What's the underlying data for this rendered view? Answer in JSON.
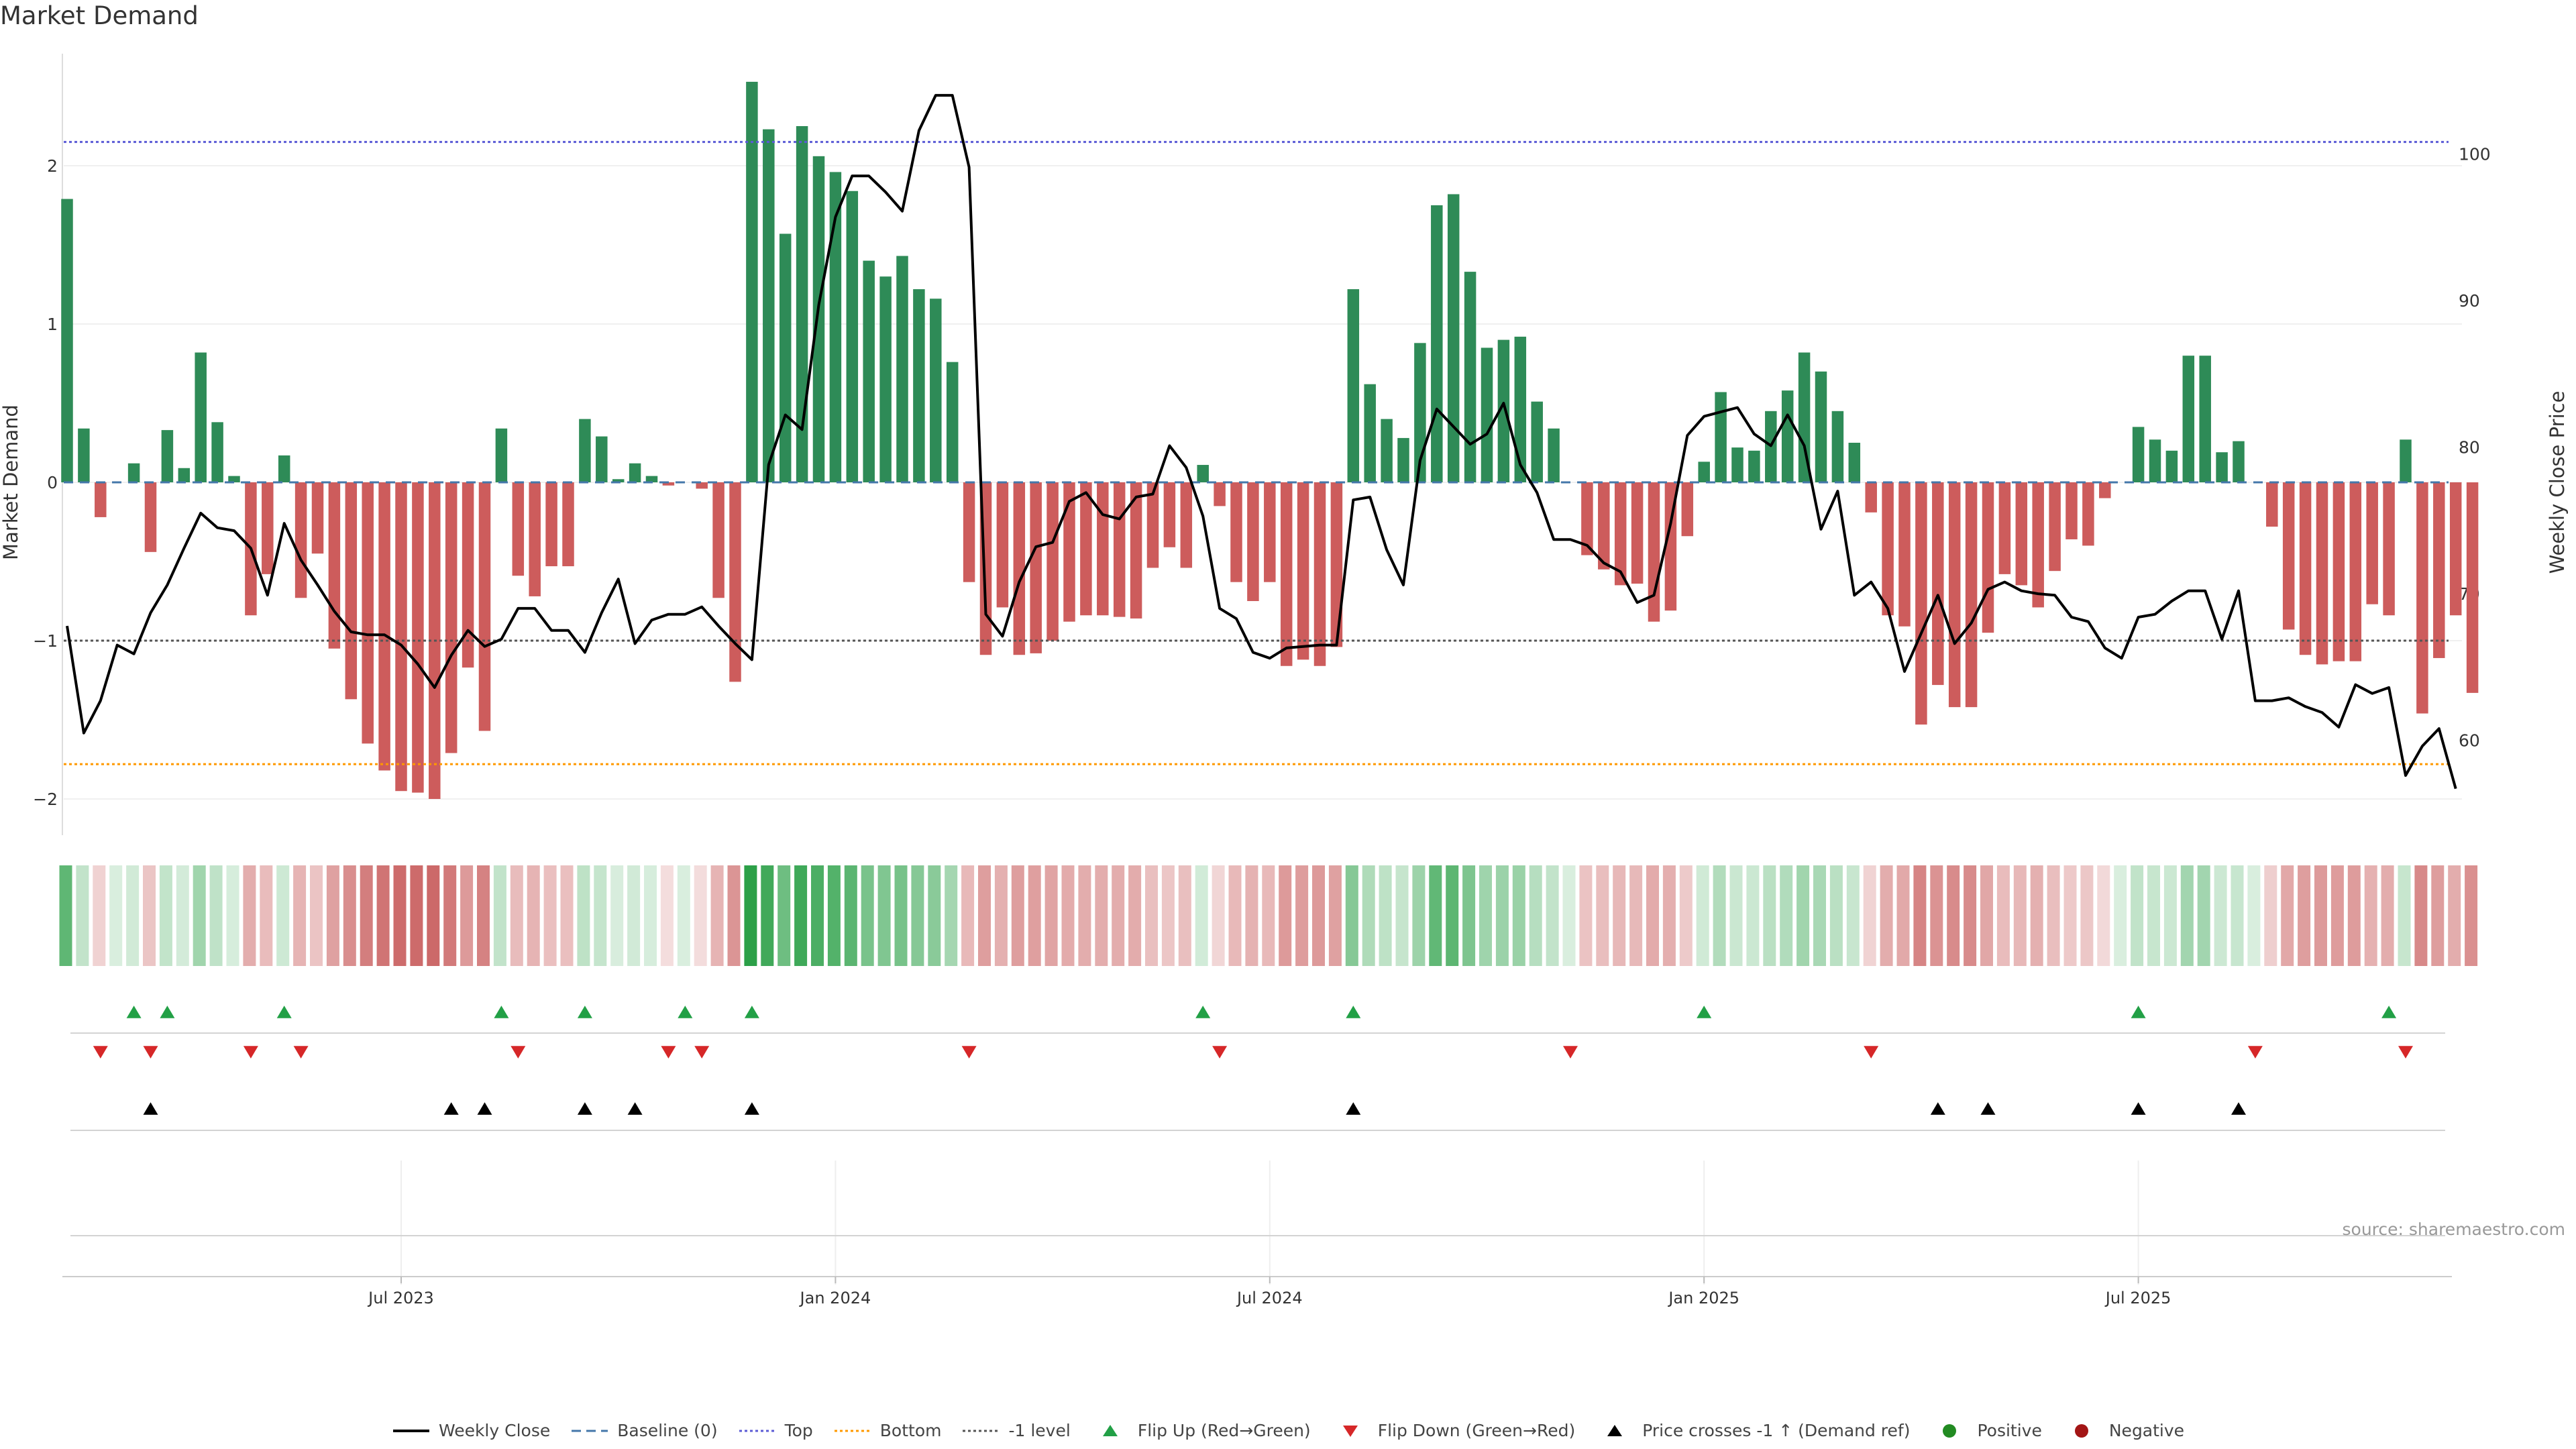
{
  "title": "Market Demand",
  "source": "source: sharemaestro.com",
  "colors": {
    "positive": "#2e8b57",
    "negative": "#cd5c5c",
    "close_line": "#000000",
    "top_line": "#5b5bd6",
    "bottom_line": "#ff9900",
    "minus1_line": "#555555",
    "baseline": "#4477aa",
    "flip_up": "#22a046",
    "flip_down": "#d62728",
    "cross": "#000000",
    "legend_positive": "#228b22",
    "legend_negative": "#a31515"
  },
  "legend": [
    {
      "label": "Weekly Close",
      "icon": "solid-line"
    },
    {
      "label": "Baseline (0)",
      "icon": "dashed-line"
    },
    {
      "label": "Top",
      "icon": "dotted-line-blue"
    },
    {
      "label": "Bottom",
      "icon": "dotted-line-orange"
    },
    {
      "label": "-1 level",
      "icon": "dotted-line-gray"
    },
    {
      "label": "Flip Up (Red→Green)",
      "icon": "triangle-up-green"
    },
    {
      "label": "Flip Down (Green→Red)",
      "icon": "triangle-down-red"
    },
    {
      "label": "Price crosses -1 ↑ (Demand ref)",
      "icon": "triangle-up-black"
    },
    {
      "label": "Positive",
      "icon": "dot-green"
    },
    {
      "label": "Negative",
      "icon": "dot-red"
    }
  ],
  "chart_data": {
    "type": "bar",
    "title": "Market Demand",
    "ylabel": "Market Demand",
    "y2label": "Weekly Close Price",
    "ylim": [
      -2.25,
      2.75
    ],
    "y_ticks": [
      -2,
      -1,
      0,
      1,
      2
    ],
    "y_tick_labels": [
      "−2",
      "−1",
      "0",
      "1",
      "2"
    ],
    "y2lim": [
      53.3,
      107.3
    ],
    "y2_ticks": [
      60,
      70,
      80,
      90,
      100
    ],
    "x_ticks": [
      20,
      46,
      72,
      98,
      124
    ],
    "x_tick_labels": [
      "Jul 2023",
      "Jan 2024",
      "Jul 2024",
      "Jan 2025",
      "Jul 2025"
    ],
    "reference_lines": {
      "top": 2.15,
      "bottom": -1.78,
      "minus1": -1,
      "baseline": 0
    },
    "grid": true,
    "series": [
      {
        "name": "Market Demand",
        "values": [
          1.79,
          0.34,
          -0.22,
          0,
          0.12,
          -0.44,
          0.33,
          0.09,
          0.82,
          0.38,
          0.04,
          -0.84,
          -0.58,
          0.17,
          -0.73,
          -0.45,
          -1.05,
          -1.37,
          -1.65,
          -1.82,
          -1.95,
          -1.96,
          -2.0,
          -1.71,
          -1.17,
          -1.57,
          0.34,
          -0.59,
          -0.72,
          -0.53,
          -0.53,
          0.4,
          0.29,
          0.02,
          0.12,
          0.04,
          -0.02,
          0,
          -0.04,
          -0.73,
          -1.26,
          2.53,
          2.23,
          1.57,
          2.25,
          2.06,
          1.96,
          1.84,
          1.4,
          1.3,
          1.43,
          1.22,
          1.16,
          0.76,
          -0.63,
          -1.09,
          -0.79,
          -1.09,
          -1.08,
          -1.0,
          -0.88,
          -0.84,
          -0.84,
          -0.85,
          -0.86,
          -0.54,
          -0.41,
          -0.54,
          0.11,
          -0.15,
          -0.63,
          -0.75,
          -0.63,
          -1.16,
          -1.12,
          -1.16,
          -1.04,
          1.22,
          0.62,
          0.4,
          0.28,
          0.88,
          1.75,
          1.82,
          1.33,
          0.85,
          0.9,
          0.92,
          0.51,
          0.34,
          0,
          -0.46,
          -0.55,
          -0.65,
          -0.64,
          -0.88,
          -0.81,
          -0.34,
          0.13,
          0.57,
          0.22,
          0.2,
          0.45,
          0.58,
          0.82,
          0.7,
          0.45,
          0.25,
          -0.19,
          -0.84,
          -0.91,
          -1.53,
          -1.28,
          -1.42,
          -1.42,
          -0.95,
          -0.58,
          -0.65,
          -0.79,
          -0.56,
          -0.36,
          -0.4,
          -0.1,
          0,
          0.35,
          0.27,
          0.2,
          0.8,
          0.8,
          0.19,
          0.26,
          0,
          -0.28,
          -0.93,
          -1.09,
          -1.15,
          -1.13,
          -1.13,
          -0.77,
          -0.84,
          0.27,
          -1.46,
          -1.11,
          -0.84,
          -1.33
        ]
      },
      {
        "name": "Weekly Close",
        "values": [
          67.8,
          60.5,
          62.7,
          66.5,
          65.9,
          68.7,
          70.6,
          73.1,
          75.5,
          74.5,
          74.3,
          73.1,
          69.9,
          74.8,
          72.3,
          70.6,
          68.8,
          67.4,
          67.2,
          67.2,
          66.5,
          65.2,
          63.6,
          65.8,
          67.5,
          66.4,
          66.9,
          69.0,
          69.0,
          67.5,
          67.5,
          66.0,
          68.7,
          71.0,
          66.6,
          68.2,
          68.6,
          68.6,
          69.1,
          67.8,
          66.6,
          65.5,
          78.8,
          82.2,
          81.2,
          89.7,
          95.7,
          98.5,
          98.5,
          97.4,
          96.1,
          101.6,
          104.0,
          104.0,
          99.1,
          68.6,
          67.1,
          70.8,
          73.2,
          73.5,
          76.3,
          76.9,
          75.4,
          75.1,
          76.6,
          76.8,
          80.1,
          78.6,
          75.3,
          69.0,
          68.3,
          66.0,
          65.6,
          66.3,
          66.4,
          66.5,
          66.5,
          76.4,
          76.6,
          73.0,
          70.6,
          79.1,
          82.6,
          81.4,
          80.2,
          80.9,
          83.0,
          78.8,
          76.9,
          73.7,
          73.7,
          73.3,
          72.1,
          71.5,
          69.4,
          69.9,
          74.8,
          80.8,
          82.1,
          82.4,
          82.7,
          80.9,
          80.1,
          82.2,
          80.1,
          74.4,
          77.0,
          69.9,
          70.8,
          69.0,
          64.7,
          67.3,
          69.9,
          66.6,
          68.0,
          70.3,
          70.8,
          70.2,
          70.0,
          69.9,
          68.4,
          68.1,
          66.3,
          65.6,
          68.4,
          68.6,
          69.5,
          70.2,
          70.2,
          66.9,
          70.2,
          62.7,
          62.7,
          62.9,
          62.3,
          61.9,
          60.9,
          63.8,
          63.2,
          63.6,
          57.6,
          59.6,
          60.8,
          56.7
        ]
      }
    ],
    "flip_up_weeks": [
      4,
      6,
      13,
      26,
      31,
      37,
      41,
      68,
      77,
      98,
      124,
      139
    ],
    "flip_down_weeks": [
      2,
      5,
      11,
      14,
      27,
      36,
      38,
      54,
      69,
      90,
      108,
      131,
      140
    ],
    "price_cross_weeks": [
      5,
      23,
      25,
      31,
      34,
      41,
      77,
      112,
      115,
      124,
      130
    ]
  }
}
